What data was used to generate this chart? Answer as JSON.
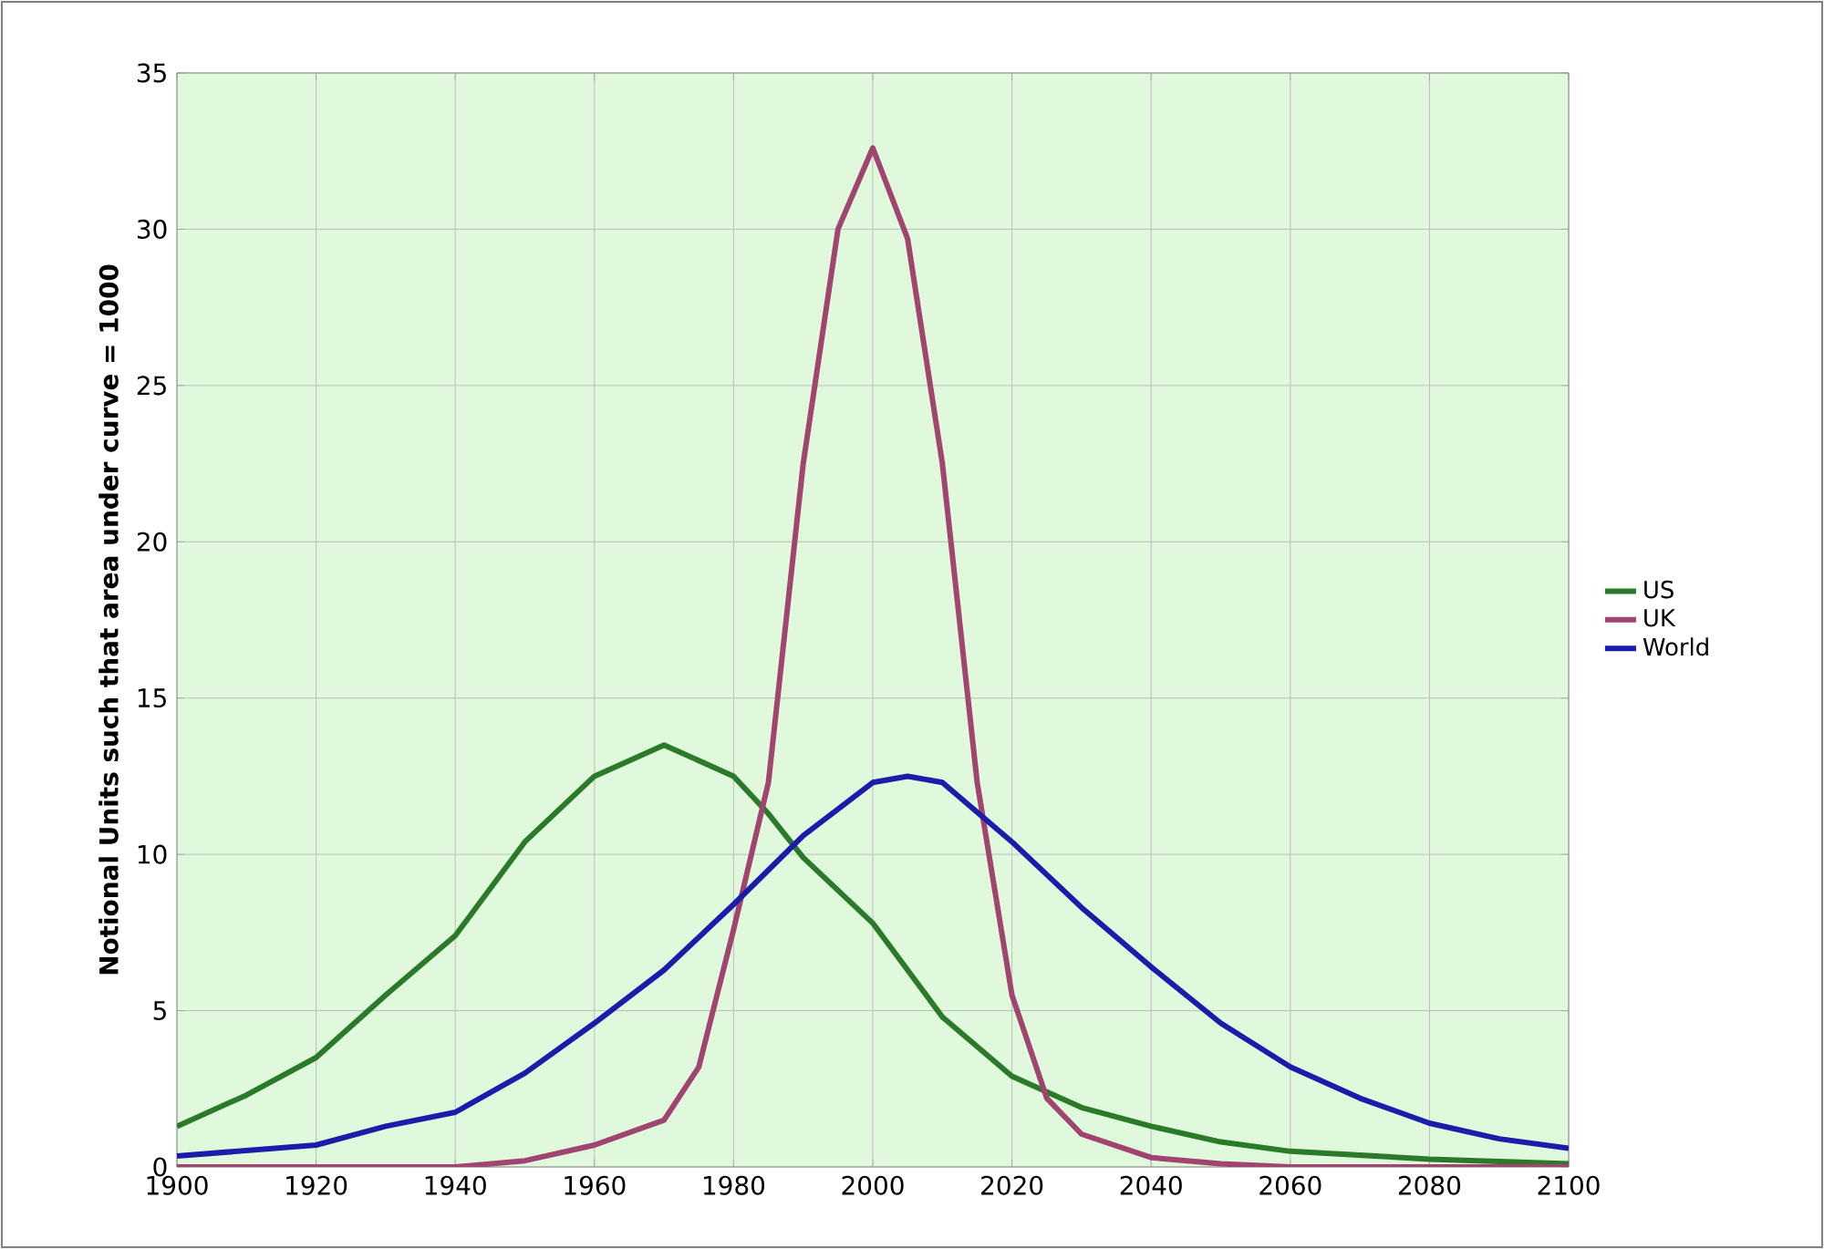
{
  "chart_data": {
    "type": "line",
    "ylabel": "Notional Units such that area under curve = 1000",
    "xlim": [
      1900,
      2100
    ],
    "ylim": [
      0,
      35
    ],
    "xticks": [
      1900,
      1920,
      1940,
      1960,
      1980,
      2000,
      2020,
      2040,
      2060,
      2080,
      2100
    ],
    "yticks": [
      0,
      5,
      10,
      15,
      20,
      25,
      30,
      35
    ],
    "grid": true,
    "legend": "right",
    "marker": "none",
    "line_style": "solid",
    "series": [
      {
        "name": "US",
        "color": "#2a7a2a",
        "x": [
          1900,
          1910,
          1920,
          1930,
          1940,
          1950,
          1960,
          1970,
          1980,
          1985,
          1990,
          2000,
          2010,
          2020,
          2030,
          2040,
          2050,
          2060,
          2080,
          2100
        ],
        "values": [
          1.3,
          2.3,
          3.5,
          5.5,
          7.4,
          10.4,
          12.5,
          13.5,
          12.5,
          11.3,
          9.9,
          7.8,
          4.8,
          2.9,
          1.9,
          1.3,
          0.8,
          0.5,
          0.25,
          0.1
        ]
      },
      {
        "name": "UK",
        "color": "#a0456f",
        "x": [
          1900,
          1920,
          1940,
          1950,
          1960,
          1970,
          1975,
          1980,
          1985,
          1990,
          1995,
          2000,
          2005,
          2010,
          2015,
          2020,
          2025,
          2030,
          2040,
          2050,
          2060,
          2080,
          2100
        ],
        "values": [
          0,
          0,
          0,
          0.2,
          0.7,
          1.5,
          3.2,
          7.6,
          12.3,
          22.5,
          30,
          32.6,
          29.7,
          22.5,
          12.3,
          5.5,
          2.2,
          1.05,
          0.3,
          0.1,
          0,
          0,
          0
        ]
      },
      {
        "name": "World",
        "color": "#1c1caa",
        "x": [
          1900,
          1920,
          1930,
          1940,
          1950,
          1960,
          1970,
          1980,
          1990,
          2000,
          2005,
          2010,
          2020,
          2030,
          2040,
          2050,
          2060,
          2070,
          2080,
          2090,
          2100
        ],
        "values": [
          0.35,
          0.7,
          1.3,
          1.75,
          3.0,
          4.6,
          6.3,
          8.4,
          10.6,
          12.3,
          12.5,
          12.3,
          10.4,
          8.3,
          6.4,
          4.6,
          3.2,
          2.2,
          1.4,
          0.9,
          0.6
        ]
      }
    ]
  }
}
